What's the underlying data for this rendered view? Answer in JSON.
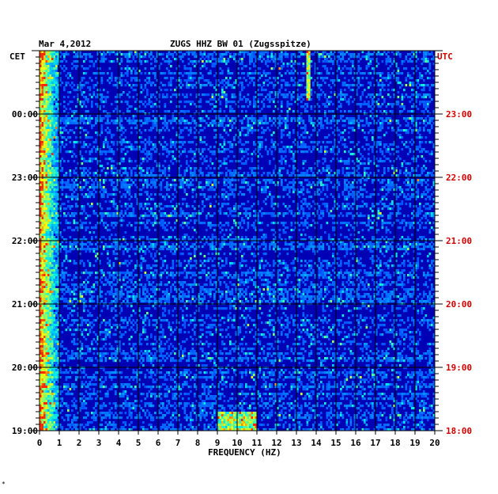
{
  "chart_data": {
    "type": "heatmap",
    "title_date": "Mar 4,2012",
    "title": "ZUGS HHZ BW 01 (Zugsspitze)",
    "left_axis_label": "CET",
    "right_axis_label": "UTC",
    "xlabel": "FREQUENCY (HZ)",
    "xlim": [
      0,
      20
    ],
    "x_ticks": [
      "0",
      "1",
      "2",
      "3",
      "4",
      "5",
      "6",
      "7",
      "8",
      "9",
      "10",
      "11",
      "12",
      "13",
      "14",
      "15",
      "16",
      "17",
      "18",
      "19",
      "20"
    ],
    "cet_ticks": [
      "00:00",
      "23:00",
      "22:00",
      "21:00",
      "20:00",
      "19:00"
    ],
    "utc_ticks": [
      "23:00",
      "22:00",
      "21:00",
      "20:00",
      "19:00",
      "18:00"
    ],
    "colors": {
      "background": "#0000b4",
      "grid": "#000000",
      "utc_text": "#d40000",
      "text": "#000000"
    },
    "features": [
      {
        "description": "strong low-frequency energy",
        "freq_range_hz": [
          0,
          1
        ]
      },
      {
        "description": "narrow band event",
        "freq_hz": 13.6,
        "time_cet": "00:45"
      },
      {
        "description": "burst near bottom",
        "freq_range_hz": [
          9,
          11
        ],
        "time_cet": "19:15"
      }
    ]
  },
  "footnote": "*"
}
